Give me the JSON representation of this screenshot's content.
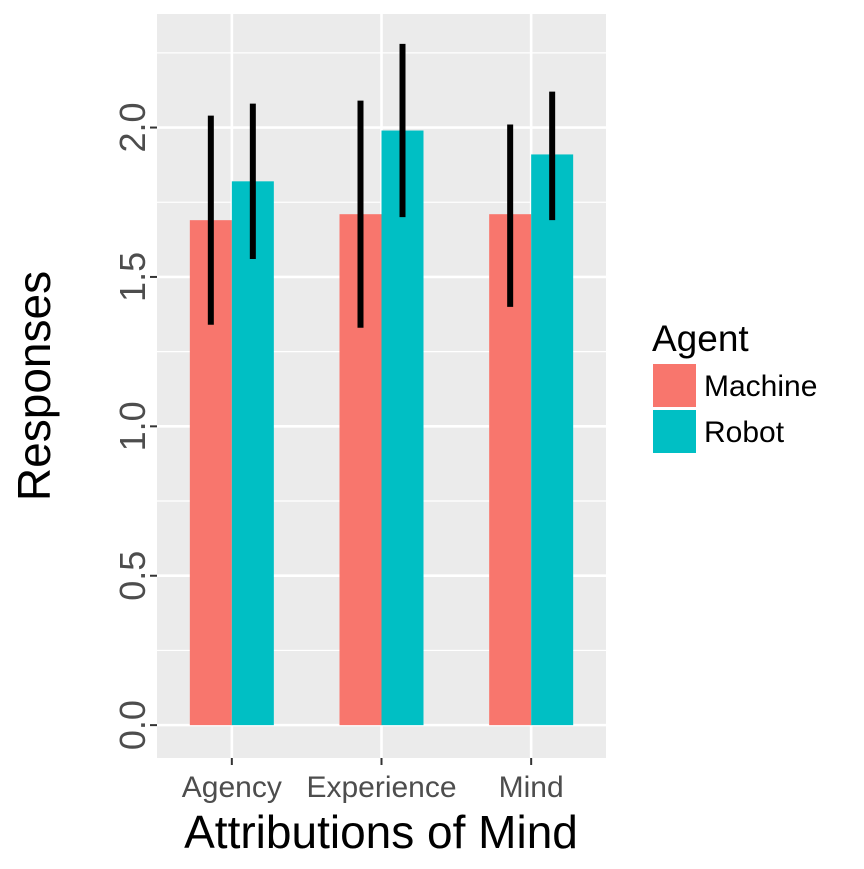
{
  "chart_data": {
    "type": "bar",
    "title": "",
    "xlabel": "Attributions of Mind",
    "ylabel": "Responses",
    "categories": [
      "Agency",
      "Experience",
      "Mind"
    ],
    "series": [
      {
        "name": "Machine",
        "color": "#F8766D",
        "values": [
          1.69,
          1.71,
          1.71
        ],
        "error_low": [
          1.34,
          1.33,
          1.4
        ],
        "error_high": [
          2.04,
          2.09,
          2.01
        ]
      },
      {
        "name": "Robot",
        "color": "#00BFC4",
        "values": [
          1.82,
          1.99,
          1.91
        ],
        "error_low": [
          1.56,
          1.7,
          1.69
        ],
        "error_high": [
          2.08,
          2.28,
          2.12
        ]
      }
    ],
    "yticks": [
      "0.0",
      "0.5",
      "1.0",
      "1.5",
      "2.0"
    ],
    "ytick_values": [
      0,
      0.5,
      1.0,
      1.5,
      2.0
    ],
    "ylim": [
      -0.11,
      2.38
    ],
    "grid": true,
    "legend": {
      "title": "Agent",
      "placement": "right"
    },
    "panel_background": "#EBEBEB",
    "grid_color": "#FFFFFF",
    "errorbar_color": "#000000"
  }
}
